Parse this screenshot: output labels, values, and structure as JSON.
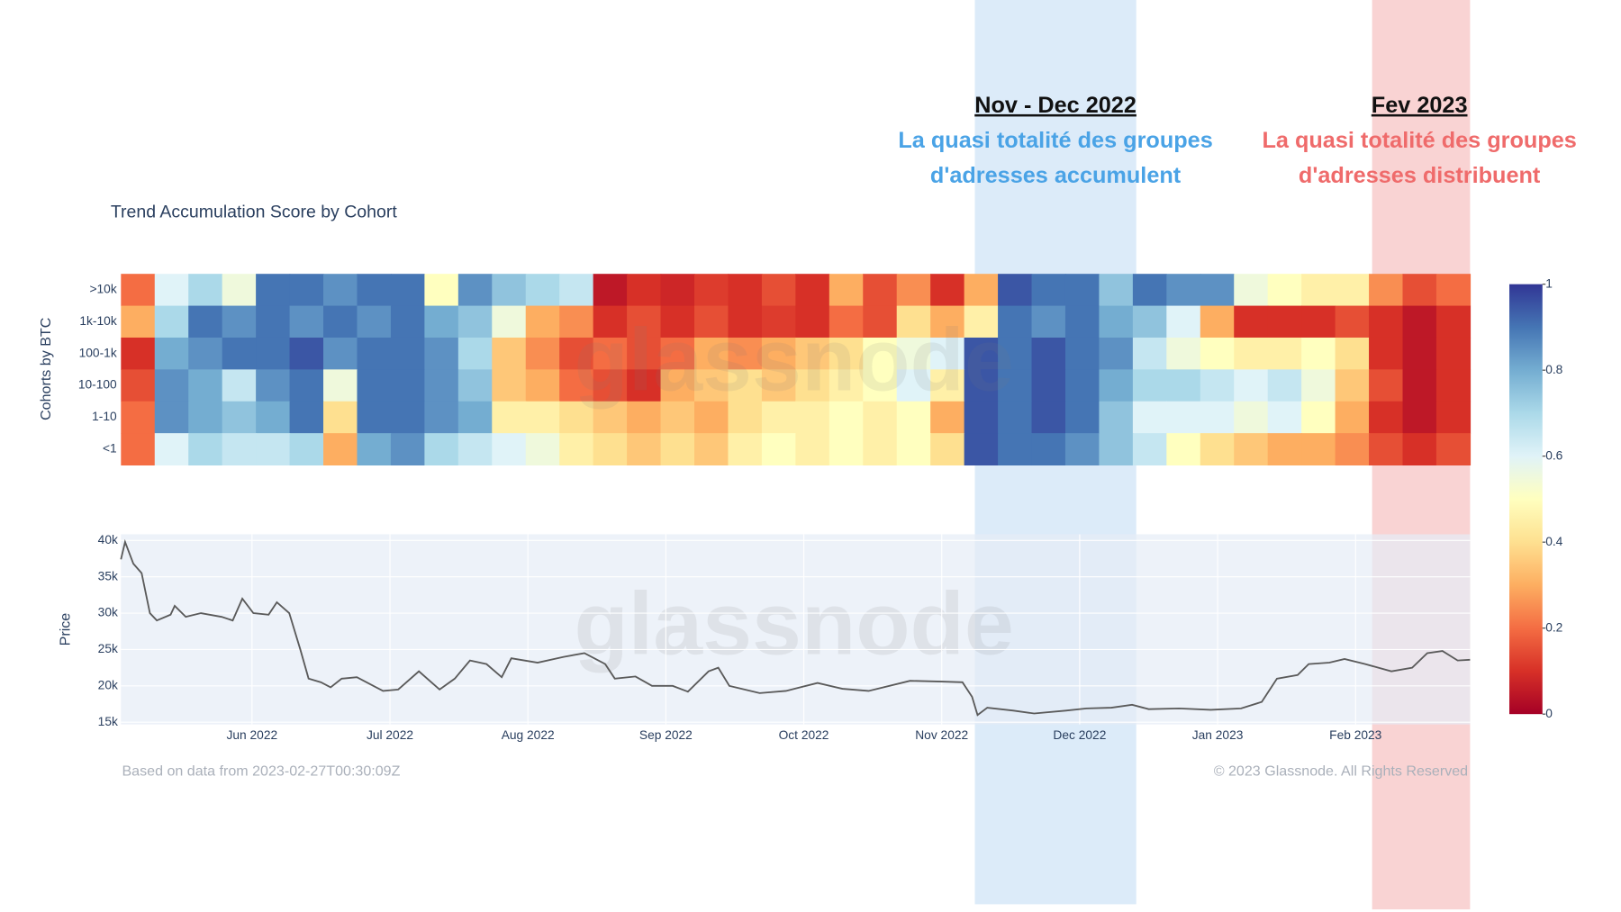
{
  "chart_data": [
    {
      "type": "heatmap",
      "title": "Trend Accumulation Score by Cohort",
      "ylabel": "Cohorts by BTC",
      "xlim": [
        4.05,
        13.83
      ],
      "zlim": [
        0,
        1
      ],
      "zticks": [
        0,
        0.2,
        0.4,
        0.6,
        0.8,
        1
      ],
      "colorscale": [
        [
          0,
          "#a50026"
        ],
        [
          0.1,
          "#d73027"
        ],
        [
          0.2,
          "#f46d43"
        ],
        [
          0.3,
          "#fdae61"
        ],
        [
          0.4,
          "#fee090"
        ],
        [
          0.5,
          "#ffffbf"
        ],
        [
          0.6,
          "#e0f3f8"
        ],
        [
          0.7,
          "#abd9e9"
        ],
        [
          0.8,
          "#74add1"
        ],
        [
          0.9,
          "#4575b4"
        ],
        [
          1,
          "#313695"
        ]
      ],
      "series": [
        {
          "name": ">10k",
          "values": [
            0.2,
            0.6,
            0.7,
            0.55,
            0.9,
            0.9,
            0.85,
            0.9,
            0.9,
            0.5,
            0.85,
            0.75,
            0.7,
            0.65,
            0.05,
            0.1,
            0.08,
            0.12,
            0.1,
            0.15,
            0.1,
            0.3,
            0.15,
            0.25,
            0.1,
            0.3,
            0.95,
            0.9,
            0.9,
            0.75,
            0.9,
            0.85,
            0.85,
            0.55,
            0.5,
            0.45,
            0.45,
            0.25,
            0.15,
            0.2
          ]
        },
        {
          "name": "1k-10k",
          "values": [
            0.3,
            0.7,
            0.9,
            0.85,
            0.9,
            0.85,
            0.9,
            0.85,
            0.9,
            0.8,
            0.75,
            0.55,
            0.3,
            0.25,
            0.1,
            0.15,
            0.1,
            0.15,
            0.1,
            0.12,
            0.1,
            0.2,
            0.15,
            0.4,
            0.3,
            0.45,
            0.9,
            0.85,
            0.9,
            0.8,
            0.75,
            0.6,
            0.3,
            0.1,
            0.1,
            0.1,
            0.15,
            0.1,
            0.05,
            0.1
          ]
        },
        {
          "name": "100-1k",
          "values": [
            0.1,
            0.8,
            0.85,
            0.9,
            0.9,
            0.95,
            0.85,
            0.9,
            0.9,
            0.85,
            0.7,
            0.35,
            0.25,
            0.15,
            0.2,
            0.15,
            0.2,
            0.3,
            0.25,
            0.3,
            0.35,
            0.4,
            0.5,
            0.55,
            0.6,
            0.95,
            0.9,
            0.95,
            0.9,
            0.85,
            0.65,
            0.55,
            0.5,
            0.45,
            0.45,
            0.5,
            0.4,
            0.1,
            0.05,
            0.1
          ]
        },
        {
          "name": "10-100",
          "values": [
            0.15,
            0.85,
            0.8,
            0.65,
            0.85,
            0.9,
            0.55,
            0.9,
            0.9,
            0.85,
            0.75,
            0.35,
            0.3,
            0.2,
            0.15,
            0.1,
            0.3,
            0.35,
            0.4,
            0.35,
            0.4,
            0.45,
            0.5,
            0.6,
            0.45,
            0.95,
            0.9,
            0.95,
            0.9,
            0.8,
            0.7,
            0.7,
            0.65,
            0.6,
            0.65,
            0.55,
            0.35,
            0.15,
            0.05,
            0.1
          ]
        },
        {
          "name": "1-10",
          "values": [
            0.2,
            0.85,
            0.8,
            0.75,
            0.8,
            0.9,
            0.4,
            0.9,
            0.9,
            0.85,
            0.8,
            0.45,
            0.45,
            0.4,
            0.35,
            0.3,
            0.35,
            0.3,
            0.4,
            0.45,
            0.45,
            0.5,
            0.45,
            0.5,
            0.3,
            0.95,
            0.9,
            0.95,
            0.9,
            0.75,
            0.6,
            0.6,
            0.6,
            0.55,
            0.6,
            0.5,
            0.3,
            0.1,
            0.05,
            0.1
          ]
        },
        {
          "name": "<1",
          "values": [
            0.2,
            0.6,
            0.7,
            0.65,
            0.65,
            0.7,
            0.3,
            0.8,
            0.85,
            0.7,
            0.65,
            0.6,
            0.55,
            0.45,
            0.4,
            0.35,
            0.4,
            0.35,
            0.45,
            0.5,
            0.45,
            0.5,
            0.45,
            0.5,
            0.4,
            0.95,
            0.9,
            0.9,
            0.85,
            0.75,
            0.65,
            0.5,
            0.4,
            0.35,
            0.3,
            0.3,
            0.25,
            0.15,
            0.1,
            0.15
          ]
        }
      ]
    },
    {
      "type": "line",
      "ylabel": "Price",
      "color": "#5a5a5a",
      "grid": true,
      "xlim": [
        4.05,
        13.83
      ],
      "ylim": [
        14700,
        40850
      ],
      "xticks": [
        {
          "value": 5,
          "label": "Jun 2022"
        },
        {
          "value": 6,
          "label": "Jul 2022"
        },
        {
          "value": 7,
          "label": "Aug 2022"
        },
        {
          "value": 8,
          "label": "Sep 2022"
        },
        {
          "value": 9,
          "label": "Oct 2022"
        },
        {
          "value": 10,
          "label": "Nov 2022"
        },
        {
          "value": 11,
          "label": "Dec 2022"
        },
        {
          "value": 12,
          "label": "Jan 2023"
        },
        {
          "value": 13,
          "label": "Feb 2023"
        }
      ],
      "yticks": [
        {
          "value": 15000,
          "label": "15k"
        },
        {
          "value": 20000,
          "label": "20k"
        },
        {
          "value": 25000,
          "label": "25k"
        },
        {
          "value": 30000,
          "label": "30k"
        },
        {
          "value": 35000,
          "label": "35k"
        },
        {
          "value": 40000,
          "label": "40k"
        }
      ],
      "x": [
        4.05,
        4.08,
        4.14,
        4.2,
        4.26,
        4.31,
        4.41,
        4.44,
        4.52,
        4.63,
        4.78,
        4.86,
        4.93,
        5.01,
        5.12,
        5.18,
        5.27,
        5.35,
        5.41,
        5.5,
        5.57,
        5.65,
        5.76,
        5.95,
        6.06,
        6.21,
        6.36,
        6.47,
        6.58,
        6.7,
        6.81,
        6.88,
        7.07,
        7.26,
        7.41,
        7.56,
        7.63,
        7.78,
        7.9,
        8.05,
        8.16,
        8.31,
        8.38,
        8.46,
        8.68,
        8.87,
        9.1,
        9.28,
        9.47,
        9.77,
        10.0,
        10.15,
        10.22,
        10.26,
        10.33,
        10.52,
        10.67,
        10.9,
        11.05,
        11.23,
        11.38,
        11.5,
        11.72,
        11.95,
        12.17,
        12.32,
        12.43,
        12.58,
        12.66,
        12.81,
        12.92,
        13.07,
        13.26,
        13.41,
        13.52,
        13.63,
        13.74,
        13.83
      ],
      "values": [
        37400,
        39800,
        36800,
        35500,
        30000,
        29000,
        29800,
        31000,
        29500,
        30000,
        29500,
        29000,
        32000,
        30000,
        29800,
        31500,
        30000,
        25000,
        21000,
        20500,
        19800,
        21000,
        21200,
        19300,
        19500,
        22000,
        19500,
        21000,
        23500,
        23000,
        21200,
        23800,
        23200,
        24000,
        24500,
        23000,
        21000,
        21300,
        20000,
        20000,
        19200,
        22000,
        22500,
        20000,
        19000,
        19300,
        20400,
        19600,
        19300,
        20700,
        20600,
        20500,
        18500,
        16000,
        17000,
        16600,
        16200,
        16600,
        16900,
        17000,
        17400,
        16800,
        16900,
        16700,
        16900,
        17800,
        21000,
        21500,
        23000,
        23200,
        23700,
        23000,
        22000,
        22500,
        24500,
        24800,
        23500,
        23600
      ],
      "watermark": "glassnode",
      "footer_left": "Based on data from 2023-02-27T00:30:09Z",
      "footer_right": "© 2023 Glassnode. All Rights Reserved"
    }
  ],
  "annotations": [
    {
      "title": "Nov - Dec 2022",
      "lines": [
        "La quasi totalité des groupes",
        "d'adresses accumulent"
      ],
      "xlim": [
        10.24,
        11.41
      ],
      "color": "#4aa3e6",
      "band_color": "#dcebf9"
    },
    {
      "title": "Fev 2023",
      "lines": [
        "La quasi totalité des groupes",
        "d'adresses distribuent"
      ],
      "xlim": [
        13.12,
        13.83
      ],
      "color": "#ef6b6b",
      "band_color": "#f9d3d3"
    }
  ]
}
